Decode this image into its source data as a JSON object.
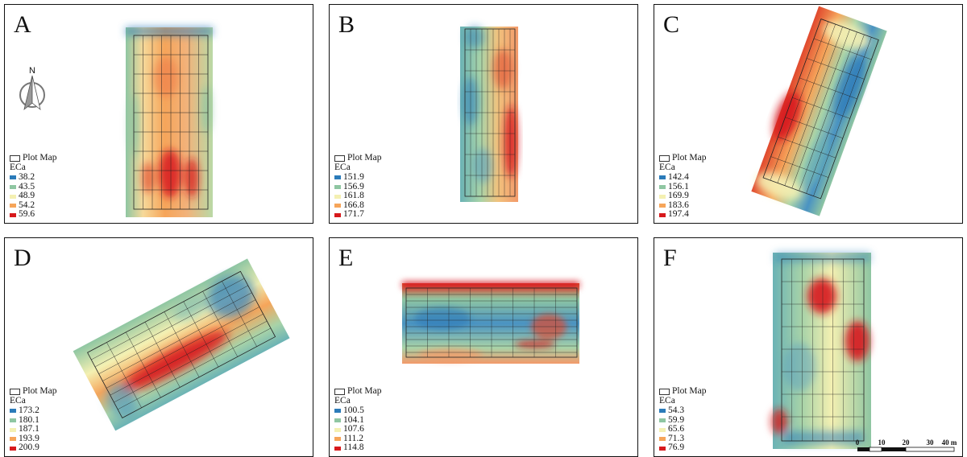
{
  "panels": [
    {
      "letter": "A",
      "legend_title": "ECa",
      "plot_label": "Plot Map",
      "classes": [
        "38.2",
        "43.5",
        "48.9",
        "54.2",
        "59.6"
      ]
    },
    {
      "letter": "B",
      "legend_title": "ECa",
      "plot_label": "Plot Map",
      "classes": [
        "151.9",
        "156.9",
        "161.8",
        "166.8",
        "171.7"
      ]
    },
    {
      "letter": "C",
      "legend_title": "ECa",
      "plot_label": "Plot Map",
      "classes": [
        "142.4",
        "156.1",
        "169.9",
        "183.6",
        "197.4"
      ]
    },
    {
      "letter": "D",
      "legend_title": "ECa",
      "plot_label": "Plot Map",
      "classes": [
        "173.2",
        "180.1",
        "187.1",
        "193.9",
        "200.9"
      ]
    },
    {
      "letter": "E",
      "legend_title": "ECa",
      "plot_label": "Plot Map",
      "classes": [
        "100.5",
        "104.1",
        "107.6",
        "111.2",
        "114.8"
      ]
    },
    {
      "letter": "F",
      "legend_title": "ECa",
      "plot_label": "Plot Map",
      "classes": [
        "54.3",
        "59.9",
        "65.6",
        "71.3",
        "76.9"
      ]
    }
  ],
  "class_colors": [
    "#2b7bb9",
    "#8fc6a2",
    "#f4f0b2",
    "#f6a55a",
    "#d7191c"
  ],
  "north_arrow_label": "N",
  "scale_bar": {
    "ticks": [
      "0",
      "10",
      "20",
      "30",
      "40 m"
    ]
  }
}
